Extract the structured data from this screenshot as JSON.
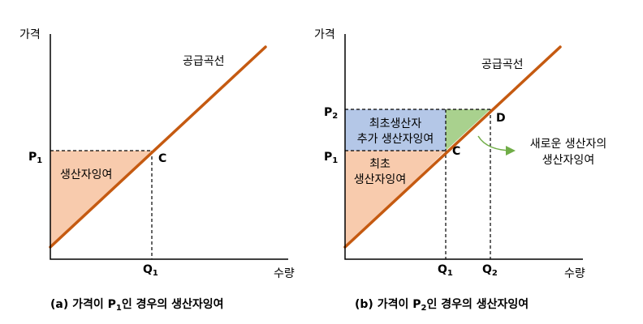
{
  "colors": {
    "supply_curve": "#c55a11",
    "surplus_fill": "#f8cbad",
    "initial_producers_added_fill": "#b4c7e7",
    "new_producers_fill": "#a9d18e",
    "arrow": "#70ad47"
  },
  "panel_a": {
    "price_axis_label": "가격",
    "quantity_axis_label": "수량",
    "supply_label": "공급곡선",
    "price_label": "P",
    "price_sub": "1",
    "quantity_label": "Q",
    "quantity_sub": "1",
    "point_label": "C",
    "surplus_label": "생산자잉여",
    "caption_prefix": "(a)  가격이  ",
    "caption_p": "P",
    "caption_sub": "1",
    "caption_suffix": "인  경우의  생산자잉여"
  },
  "panel_b": {
    "price_axis_label": "가격",
    "quantity_axis_label": "수량",
    "supply_label": "공급곡선",
    "price1_label": "P",
    "price1_sub": "1",
    "price2_label": "P",
    "price2_sub": "2",
    "quantity1_label": "Q",
    "quantity1_sub": "1",
    "quantity2_label": "Q",
    "quantity2_sub": "2",
    "point_c_label": "C",
    "point_d_label": "D",
    "added_surplus_line1": "최초생산자",
    "added_surplus_line2": "추가  생산자잉여",
    "initial_surplus_line1": "최초",
    "initial_surplus_line2": "생산자잉여",
    "new_surplus_line1": "새로운  생산자의",
    "new_surplus_line2": "생산자잉여",
    "caption_prefix": "(b)  가격이  ",
    "caption_p": "P",
    "caption_sub": "2",
    "caption_suffix": "인  경우의  생산자잉여"
  }
}
